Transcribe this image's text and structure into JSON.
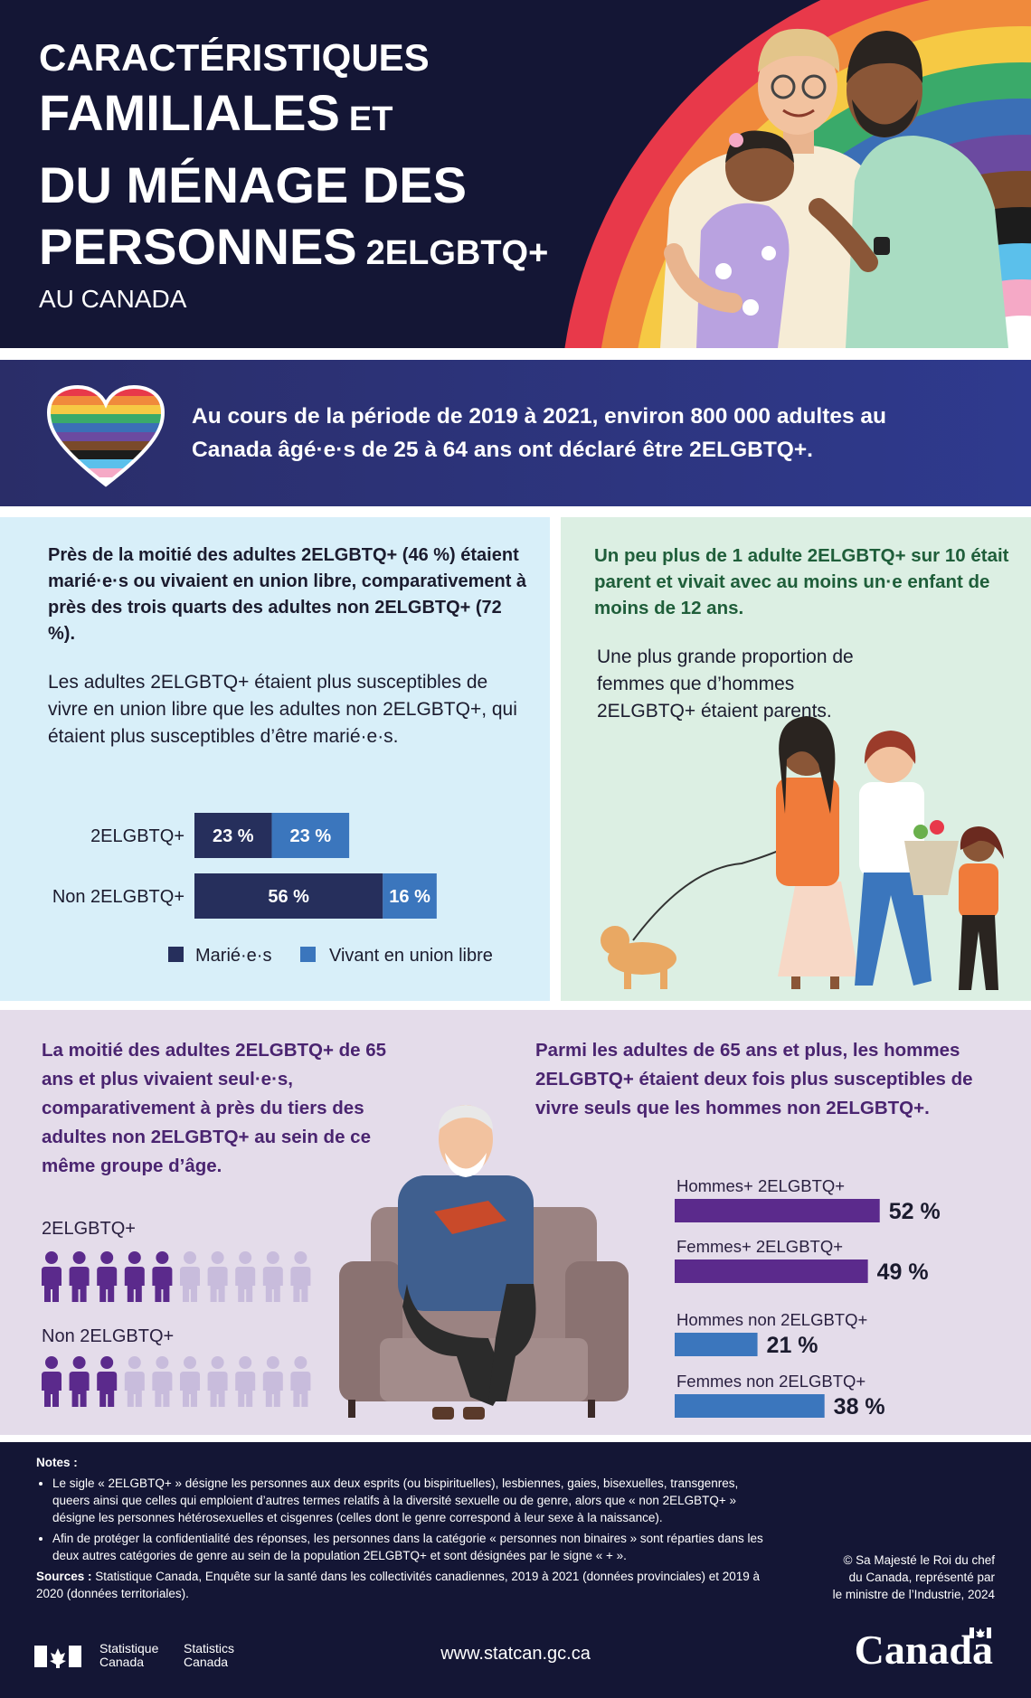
{
  "header": {
    "line1": "CARACTÉRISTIQUES",
    "line2": "FAMILIALES",
    "line2_small": "ET",
    "line3": "DU MÉNAGE DES",
    "line4": "PERSONNES",
    "line4_small": "2ELGBTQ+",
    "subtitle": "AU CANADA"
  },
  "banner": {
    "text": "Au cours de la période de 2019 à 2021, environ 800 000 adultes au Canada âgé·e·s de 25 à 64 ans ont déclaré être 2ELGBTQ+."
  },
  "sections": [
    {
      "heading": "Près de la moitié des adultes 2ELGBTQ+ (46 %) étaient marié·e·s ou vivaient en union libre, comparativement à près des trois quarts des adultes non 2ELGBTQ+ (72 %).",
      "body": "Les adultes 2ELGBTQ+ étaient plus susceptibles de vivre en union libre que les adultes non 2ELGBTQ+, qui étaient plus susceptibles d’être marié·e·s."
    },
    {
      "heading": "Un peu plus de 1 adulte 2ELGBTQ+ sur 10 était parent et vivait avec au moins un·e enfant de moins de 12 ans.",
      "body": "Une plus grande proportion de femmes que d’hommes 2ELGBTQ+ étaient parents."
    },
    {
      "heading": "La moitié des adultes 2ELGBTQ+ de 65 ans et plus vivaient seul·e·s, comparativement à près du tiers des adultes non 2ELGBTQ+ au sein de ce même groupe d’âge."
    },
    {
      "heading": "Parmi les adultes de 65 ans et plus, les hommes 2ELGBTQ+ étaient deux fois plus susceptibles de vivre seuls que les hommes non 2ELGBTQ+."
    }
  ],
  "chart_data": [
    {
      "type": "stacked_bar_h",
      "categories": [
        "2ELGBTQ+",
        "Non 2ELGBTQ+"
      ],
      "series": [
        {
          "name": "Marié·e·s",
          "color": "#262f5c",
          "values": [
            23,
            56
          ],
          "value_labels": [
            "23 %",
            "56 %"
          ]
        },
        {
          "name": "Vivant en union libre",
          "color": "#3b76bd",
          "values": [
            23,
            16
          ],
          "value_labels": [
            "23 %",
            "16 %"
          ]
        }
      ],
      "xlim": [
        0,
        100
      ]
    },
    {
      "type": "pictogram",
      "categories": [
        "2ELGBTQ+",
        "Non 2ELGBTQ+"
      ],
      "values": [
        5,
        3
      ],
      "total": 10,
      "color": "#5b2a8c",
      "empty_color": "#c8bcdc"
    },
    {
      "type": "bar_h",
      "categories": [
        "Hommes+ 2ELGBTQ+",
        "Femmes+ 2ELGBTQ+",
        "Hommes non 2ELGBTQ+",
        "Femmes non 2ELGBTQ+"
      ],
      "values": [
        52,
        49,
        21,
        38
      ],
      "value_labels": [
        "52 %",
        "49 %",
        "21 %",
        "38 %"
      ],
      "colors": [
        "#5b2a8c",
        "#5b2a8c",
        "#3b76bd",
        "#3b76bd"
      ],
      "xlim": [
        0,
        100
      ]
    }
  ],
  "footer": {
    "notes_title": "Notes :",
    "notes": [
      "Le sigle « 2ELGBTQ+ » désigne les personnes aux deux esprits (ou bispirituelles), lesbiennes, gaies, bisexuelles, transgenres, queers ainsi que celles qui emploient d’autres termes relatifs à la diversité sexuelle ou de genre, alors que « non 2ELGBTQ+ » désigne les personnes hétérosexuelles et cisgenres (celles dont le genre correspond à leur sexe à la naissance).",
      "Afin de protéger la confidentialité des réponses, les personnes dans la catégorie « personnes non binaires » sont réparties dans les deux autres catégories de genre au sein de la population 2ELGBTQ+ et sont désignées par le signe « + »."
    ],
    "sources_label": "Sources :",
    "sources": "Statistique Canada, Enquête sur la santé dans les collectivités canadiennes, 2019 à 2021 (données provinciales) et 2019 à 2020 (données territoriales).",
    "copyright": [
      "© Sa Majesté le Roi du chef",
      "du Canada, représenté par",
      "le ministre de l’Industrie, 2024"
    ],
    "logo_fr": [
      "Statistique",
      "Canada"
    ],
    "logo_en": [
      "Statistics",
      "Canada"
    ],
    "url": "www.statcan.gc.ca",
    "wordmark": "Canada"
  }
}
